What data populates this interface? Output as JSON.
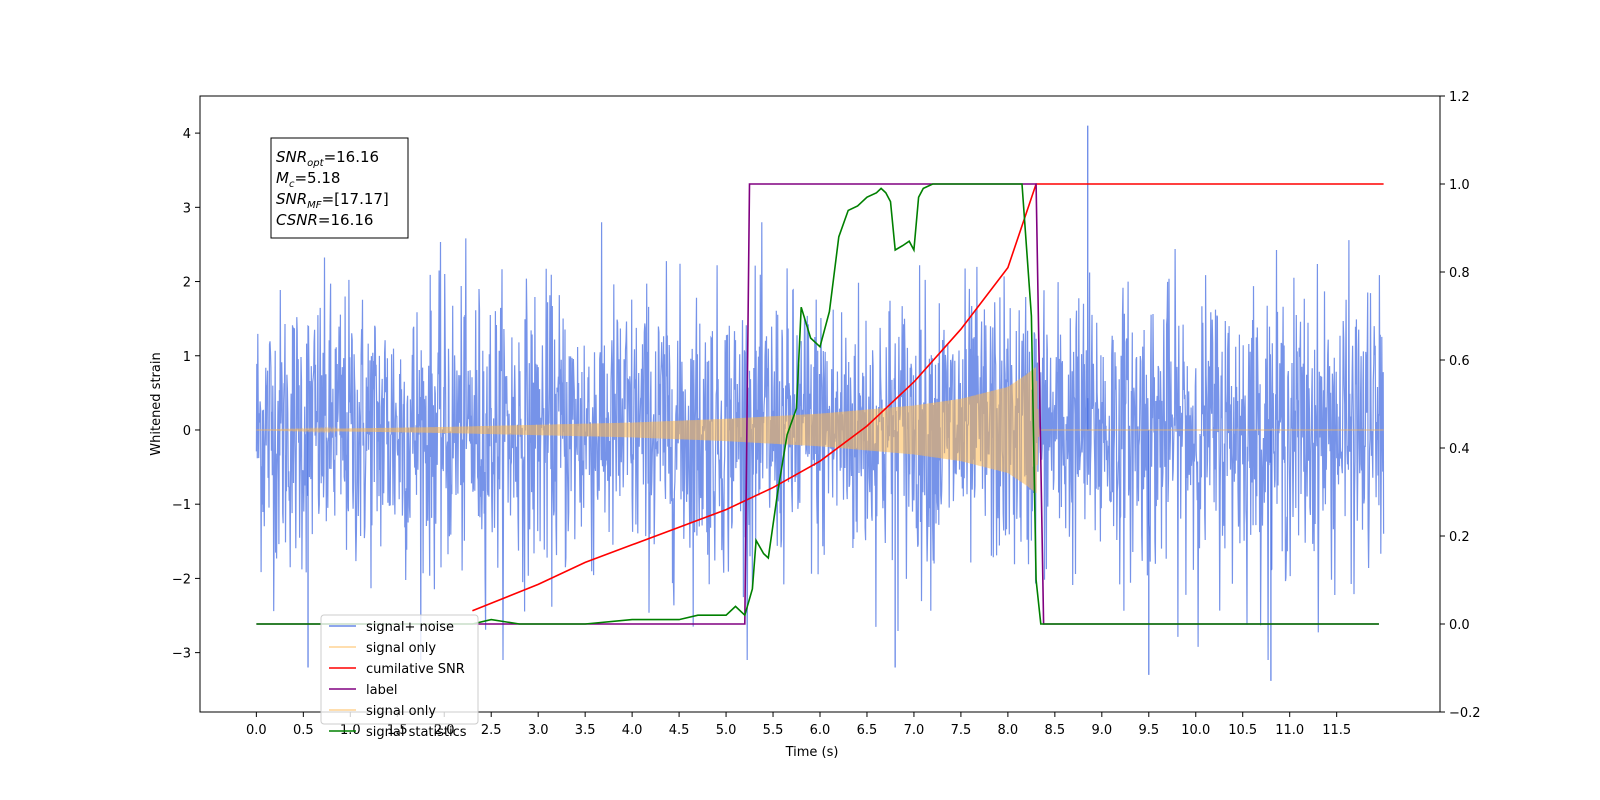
{
  "chart_data": {
    "type": "line",
    "title": "",
    "xlabel": "Time (s)",
    "ylabel": "Whitened strain",
    "xlim": [
      -0.6,
      12.6
    ],
    "ylim": [
      -3.8,
      4.5
    ],
    "y2lim": [
      -0.2,
      1.2
    ],
    "x_ticks": [
      0.0,
      0.5,
      1.0,
      1.5,
      2.0,
      2.5,
      3.0,
      3.5,
      4.0,
      4.5,
      5.0,
      5.5,
      6.0,
      6.5,
      7.0,
      7.5,
      8.0,
      8.5,
      9.0,
      9.5,
      10.0,
      10.5,
      11.0,
      11.5
    ],
    "x_tick_labels": [
      "0.0",
      "0.5",
      "1.0",
      "1.5",
      "2.0",
      "2.5",
      "3.0",
      "3.5",
      "4.0",
      "4.5",
      "5.0",
      "5.5",
      "6.0",
      "6.5",
      "7.0",
      "7.5",
      "8.0",
      "8.5",
      "9.0",
      "9.5",
      "10.0",
      "10.5",
      "11.0",
      "11.5"
    ],
    "y_ticks": [
      -3,
      -2,
      -1,
      0,
      1,
      2,
      3,
      4
    ],
    "y_tick_labels": [
      "−3",
      "−2",
      "−1",
      "0",
      "1",
      "2",
      "3",
      "4"
    ],
    "y2_ticks": [
      -0.2,
      0.0,
      0.2,
      0.4,
      0.6,
      0.8,
      1.0,
      1.2
    ],
    "y2_tick_labels": [
      "−0.2",
      "0.0",
      "0.2",
      "0.4",
      "0.6",
      "0.8",
      "1.0",
      "1.2"
    ],
    "grid": false,
    "legend_position": "lower-left",
    "colors": {
      "signal_noise": "#4169e1",
      "signal_only": "#ffb84d",
      "cumulative_snr": "#ff0000",
      "label": "#800080",
      "signal_statistics": "#008000"
    },
    "annotation": [
      {
        "base": "SNR",
        "sub": "opt",
        "rest": "=16.16"
      },
      {
        "base": "M",
        "sub": "c",
        "rest": "=5.18"
      },
      {
        "base": "SNR",
        "sub": "MF",
        "rest": "=[17.17]"
      },
      {
        "base": "CSNR",
        "sub": "",
        "rest": "=16.16"
      }
    ],
    "legend": [
      "signal+ noise",
      "signal only",
      "cumilative SNR",
      "label",
      "signal only",
      "signal statistics"
    ],
    "series": [
      {
        "name": "signal+ noise",
        "axis": "left",
        "kind": "noise-band",
        "x_range": [
          0.0,
          12.0
        ],
        "typical_amplitude": 1.5,
        "peak_min": -3.4,
        "peak_max": 4.1,
        "notable_peaks": [
          [
            8.85,
            4.1
          ],
          [
            10.8,
            -3.38
          ],
          [
            9.5,
            -3.3
          ],
          [
            0.55,
            -3.2
          ],
          [
            6.8,
            -3.2
          ]
        ]
      },
      {
        "name": "signal only",
        "axis": "left",
        "kind": "chirp-envelope",
        "x": [
          0.0,
          1.0,
          2.0,
          3.0,
          4.0,
          5.0,
          6.0,
          7.0,
          7.5,
          8.0,
          8.2,
          8.3,
          8.33,
          8.4,
          12.0
        ],
        "amplitude": [
          0.0,
          0.02,
          0.04,
          0.07,
          0.1,
          0.15,
          0.22,
          0.33,
          0.42,
          0.58,
          0.75,
          0.85,
          0.0,
          0.0,
          0.0
        ]
      },
      {
        "name": "cumilative SNR",
        "axis": "right",
        "x": [
          2.3,
          3.0,
          3.5,
          4.0,
          4.5,
          5.0,
          5.5,
          6.0,
          6.5,
          7.0,
          7.5,
          8.0,
          8.3,
          12.0
        ],
        "y": [
          0.03,
          0.09,
          0.14,
          0.18,
          0.22,
          0.26,
          0.31,
          0.37,
          0.45,
          0.55,
          0.67,
          0.81,
          1.0,
          1.0
        ]
      },
      {
        "name": "label",
        "axis": "right",
        "x": [
          0.0,
          5.2,
          5.25,
          8.3,
          8.38,
          11.95
        ],
        "y": [
          0.0,
          0.0,
          1.0,
          1.0,
          0.0,
          0.0
        ]
      },
      {
        "name": "signal statistics",
        "axis": "right",
        "x": [
          0.0,
          2.3,
          2.5,
          2.8,
          3.5,
          4.0,
          4.5,
          4.7,
          5.0,
          5.1,
          5.2,
          5.28,
          5.32,
          5.4,
          5.45,
          5.55,
          5.65,
          5.75,
          5.8,
          5.9,
          6.0,
          6.1,
          6.2,
          6.3,
          6.4,
          6.5,
          6.6,
          6.65,
          6.7,
          6.75,
          6.8,
          6.88,
          6.95,
          7.0,
          7.05,
          7.1,
          7.2,
          7.3,
          7.5,
          8.0,
          8.15,
          8.25,
          8.3,
          8.35,
          8.45,
          11.95
        ],
        "y": [
          0.0,
          0.0,
          0.01,
          0.0,
          0.0,
          0.01,
          0.01,
          0.02,
          0.02,
          0.04,
          0.02,
          0.08,
          0.19,
          0.16,
          0.15,
          0.3,
          0.43,
          0.49,
          0.72,
          0.65,
          0.63,
          0.71,
          0.88,
          0.94,
          0.95,
          0.97,
          0.98,
          0.99,
          0.98,
          0.96,
          0.85,
          0.86,
          0.87,
          0.85,
          0.97,
          0.99,
          1.0,
          1.0,
          1.0,
          1.0,
          1.0,
          0.7,
          0.1,
          0.0,
          0.0,
          0.0
        ]
      }
    ]
  }
}
